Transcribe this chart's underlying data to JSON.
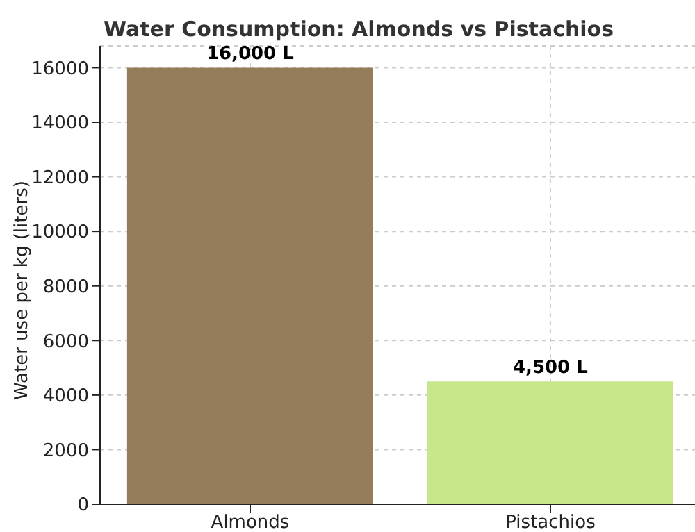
{
  "chart_data": {
    "type": "bar",
    "title": "Water Consumption: Almonds vs Pistachios",
    "ylabel": "Water use per kg (liters)",
    "categories": [
      "Almonds",
      "Pistachios"
    ],
    "values": [
      16000,
      4500
    ],
    "colors": [
      "#957c5b",
      "#c8e68a"
    ],
    "value_labels": [
      "16,000 L",
      "4,500 L"
    ],
    "ylim": [
      0,
      16800
    ],
    "yticks": [
      0,
      2000,
      4000,
      6000,
      8000,
      10000,
      12000,
      14000,
      16000
    ],
    "grid": true
  }
}
